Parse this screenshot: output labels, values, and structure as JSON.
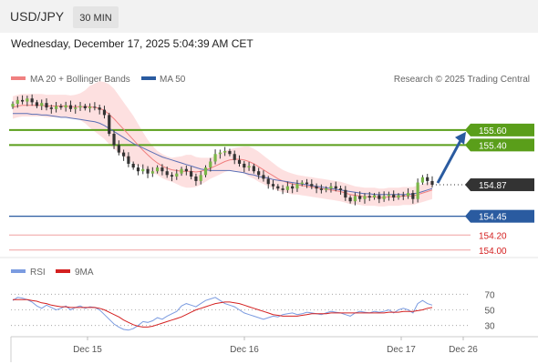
{
  "header": {
    "symbol": "USD/JPY",
    "timeframe": "30 MIN",
    "datetime": "Wednesday, December 17, 2025 5:04:39 AM CET"
  },
  "legend": {
    "ma20": "MA 20 + Bollinger Bands",
    "ma50": "MA 50",
    "source": "Research © 2025 Trading Central"
  },
  "rsi_legend": {
    "rsi": "RSI",
    "ma": "9MA"
  },
  "colors": {
    "bull": "#7ab648",
    "bear": "#333333",
    "ma20": "#f08080",
    "bands": "#fde0e0",
    "ma50": "#5b6fb5",
    "rsi": "#7b9be0",
    "rsi_ma": "#d42020",
    "resistance": "#5a9e1a",
    "support": "#2a5ba0",
    "target": "#f0a0a0",
    "arrow": "#2a5ba0",
    "price": "#333333"
  },
  "chart_data": [
    {
      "type": "candlestick",
      "title": "USD/JPY",
      "timeframe": "30 MIN",
      "x_ticks": [
        "Dec 15",
        "Dec 16",
        "Dec 17",
        "Dec 26"
      ],
      "current_price": 154.87,
      "levels": [
        {
          "value": 155.6,
          "label": "155.60",
          "kind": "resistance"
        },
        {
          "value": 155.4,
          "label": "155.40",
          "kind": "resistance"
        },
        {
          "value": 154.87,
          "label": "154.87",
          "kind": "price"
        },
        {
          "value": 154.45,
          "label": "154.45",
          "kind": "pivot"
        },
        {
          "value": 154.2,
          "label": "154.20",
          "kind": "support"
        },
        {
          "value": 154.0,
          "label": "154.00",
          "kind": "support"
        }
      ],
      "ylim": [
        153.9,
        156.12
      ],
      "projection_arrow": {
        "from": 154.87,
        "to": 155.6
      },
      "closes": [
        155.95,
        156.0,
        155.98,
        156.02,
        155.97,
        155.92,
        155.96,
        155.9,
        155.88,
        155.92,
        155.9,
        155.93,
        155.88,
        155.9,
        155.92,
        155.89,
        155.91,
        155.9,
        155.87,
        155.8,
        155.55,
        155.4,
        155.3,
        155.25,
        155.15,
        155.1,
        155.05,
        155.08,
        155.02,
        155.05,
        155.1,
        155.05,
        155.0,
        154.98,
        155.02,
        155.08,
        155.05,
        154.98,
        154.92,
        155.0,
        155.1,
        155.18,
        155.28,
        155.3,
        155.32,
        155.28,
        155.2,
        155.15,
        155.1,
        155.12,
        155.05,
        155.0,
        154.95,
        154.88,
        154.85,
        154.82,
        154.8,
        154.85,
        154.82,
        154.88,
        154.9,
        154.88,
        154.85,
        154.82,
        154.8,
        154.82,
        154.85,
        154.82,
        154.8,
        154.7,
        154.65,
        154.72,
        154.68,
        154.72,
        154.7,
        154.73,
        154.68,
        154.72,
        154.74,
        154.7,
        154.73,
        154.72,
        154.76,
        154.68,
        154.9,
        154.97,
        154.92,
        154.87
      ],
      "ma20": [
        155.9,
        155.92,
        155.93,
        155.93,
        155.93,
        155.93,
        155.93,
        155.92,
        155.92,
        155.92,
        155.92,
        155.92,
        155.91,
        155.91,
        155.91,
        155.91,
        155.91,
        155.9,
        155.89,
        155.86,
        155.81,
        155.75,
        155.68,
        155.61,
        155.54,
        155.47,
        155.4,
        155.33,
        155.27,
        155.21,
        155.16,
        155.12,
        155.09,
        155.07,
        155.06,
        155.05,
        155.05,
        155.05,
        155.04,
        155.05,
        155.07,
        155.09,
        155.12,
        155.15,
        155.18,
        155.2,
        155.21,
        155.21,
        155.2,
        155.18,
        155.15,
        155.11,
        155.07,
        155.03,
        154.99,
        154.95,
        154.92,
        154.9,
        154.88,
        154.87,
        154.86,
        154.85,
        154.84,
        154.83,
        154.82,
        154.81,
        154.8,
        154.79,
        154.78,
        154.76,
        154.74,
        154.73,
        154.72,
        154.71,
        154.71,
        154.71,
        154.7,
        154.7,
        154.71,
        154.71,
        154.71,
        154.72,
        154.72,
        154.72,
        154.74,
        154.76,
        154.78,
        154.8
      ],
      "bb_width": [
        0.15,
        0.15,
        0.15,
        0.15,
        0.15,
        0.15,
        0.15,
        0.15,
        0.15,
        0.15,
        0.15,
        0.15,
        0.15,
        0.16,
        0.18,
        0.22,
        0.28,
        0.32,
        0.36,
        0.38,
        0.4,
        0.4,
        0.38,
        0.36,
        0.34,
        0.32,
        0.28,
        0.24,
        0.2,
        0.18,
        0.16,
        0.16,
        0.16,
        0.16,
        0.18,
        0.2,
        0.22,
        0.22,
        0.2,
        0.18,
        0.16,
        0.14,
        0.14,
        0.14,
        0.14,
        0.14,
        0.15,
        0.16,
        0.18,
        0.2,
        0.2,
        0.2,
        0.19,
        0.18,
        0.17,
        0.16,
        0.15,
        0.14,
        0.14,
        0.13,
        0.13,
        0.13,
        0.13,
        0.13,
        0.13,
        0.13,
        0.13,
        0.13,
        0.13,
        0.13,
        0.13,
        0.12,
        0.12,
        0.12,
        0.12,
        0.12,
        0.12,
        0.12,
        0.12,
        0.12,
        0.12,
        0.12,
        0.12,
        0.12,
        0.12,
        0.12,
        0.12,
        0.12
      ],
      "ma50": [
        155.82,
        155.82,
        155.82,
        155.82,
        155.81,
        155.81,
        155.8,
        155.8,
        155.79,
        155.78,
        155.77,
        155.77,
        155.76,
        155.75,
        155.74,
        155.73,
        155.72,
        155.71,
        155.69,
        155.66,
        155.62,
        155.58,
        155.54,
        155.5,
        155.46,
        155.42,
        155.39,
        155.36,
        155.33,
        155.3,
        155.27,
        155.24,
        155.22,
        155.2,
        155.18,
        155.16,
        155.14,
        155.12,
        155.1,
        155.08,
        155.07,
        155.06,
        155.06,
        155.06,
        155.06,
        155.06,
        155.05,
        155.04,
        155.03,
        155.01,
        155.0,
        154.98,
        154.97,
        154.96,
        154.94,
        154.93,
        154.92,
        154.91,
        154.9,
        154.89,
        154.88,
        154.87,
        154.86,
        154.85,
        154.84,
        154.83,
        154.82,
        154.81,
        154.8,
        154.79,
        154.78,
        154.77,
        154.76,
        154.75,
        154.75,
        154.74,
        154.74,
        154.74,
        154.74,
        154.74,
        154.74,
        154.74,
        154.74,
        154.75,
        154.76,
        154.78,
        154.8,
        154.82
      ]
    },
    {
      "type": "line",
      "title": "RSI",
      "y_ticks": [
        70,
        50,
        30
      ],
      "ylim": [
        18,
        82
      ],
      "series": [
        {
          "name": "RSI",
          "values": [
            62,
            66,
            65,
            63,
            60,
            55,
            52,
            56,
            53,
            50,
            52,
            55,
            50,
            53,
            55,
            52,
            54,
            53,
            50,
            44,
            38,
            32,
            28,
            25,
            24,
            26,
            30,
            35,
            34,
            36,
            40,
            38,
            42,
            45,
            48,
            55,
            58,
            56,
            54,
            58,
            62,
            64,
            66,
            62,
            58,
            56,
            54,
            50,
            46,
            44,
            42,
            40,
            38,
            40,
            42,
            41,
            44,
            45,
            46,
            44,
            45,
            47,
            46,
            45,
            44,
            46,
            48,
            47,
            46,
            44,
            42,
            46,
            48,
            47,
            46,
            48,
            47,
            48,
            50,
            46,
            50,
            52,
            50,
            46,
            58,
            62,
            58,
            56
          ]
        },
        {
          "name": "9MA",
          "values": [
            63,
            63,
            63,
            63,
            62,
            61,
            59,
            58,
            56,
            55,
            54,
            54,
            53,
            53,
            53,
            53,
            53,
            53,
            52,
            50,
            47,
            44,
            41,
            37,
            34,
            31,
            29,
            28,
            28,
            29,
            31,
            33,
            35,
            37,
            39,
            41,
            44,
            47,
            50,
            52,
            54,
            56,
            58,
            59,
            60,
            60,
            59,
            58,
            56,
            54,
            52,
            50,
            48,
            46,
            44,
            43,
            42,
            42,
            42,
            42,
            43,
            44,
            45,
            45,
            45,
            45,
            46,
            46,
            46,
            46,
            46,
            46,
            46,
            46,
            46,
            46,
            46,
            46,
            47,
            47,
            47,
            48,
            48,
            48,
            49,
            50,
            52,
            53
          ]
        }
      ]
    }
  ]
}
